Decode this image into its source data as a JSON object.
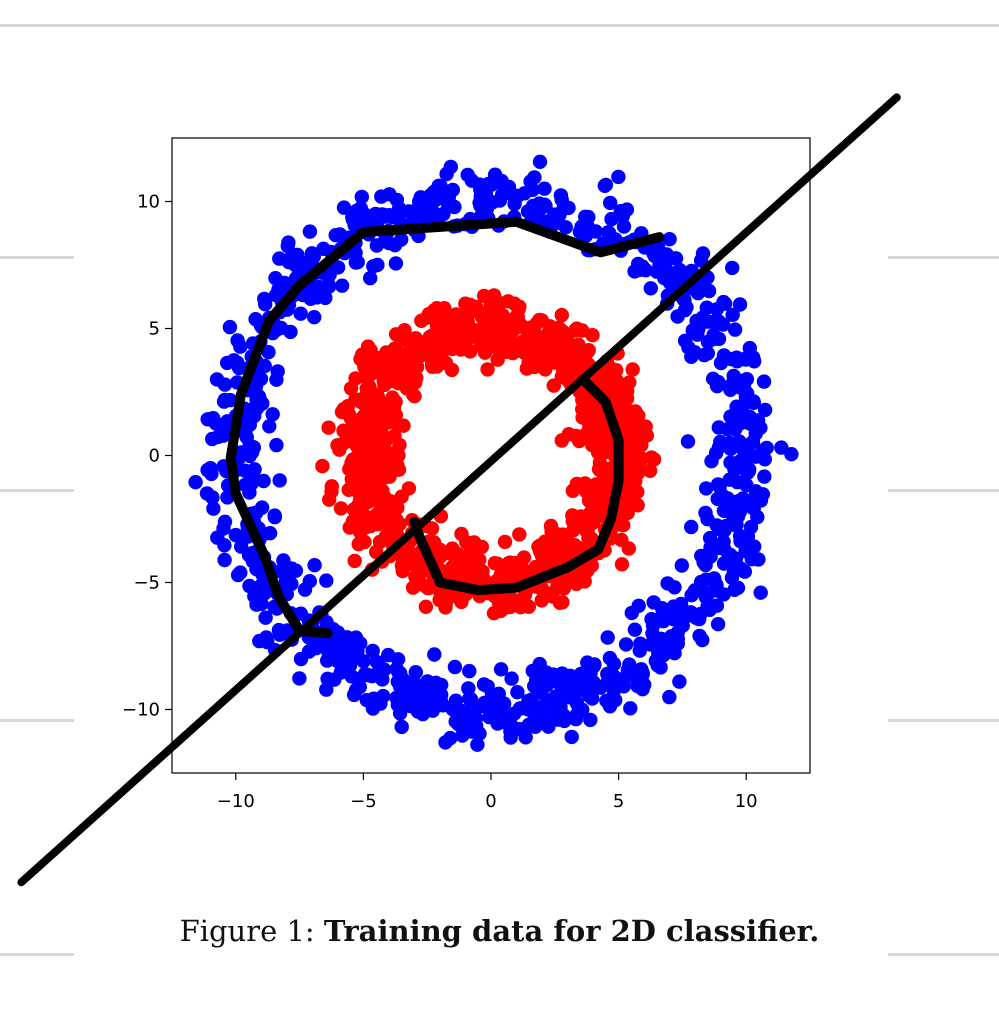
{
  "chart_data": {
    "type": "scatter",
    "title": "",
    "xlabel": "",
    "ylabel": "",
    "xlim": [
      -12.5,
      12.5
    ],
    "ylim": [
      -12.5,
      12.5
    ],
    "x_ticks": [
      -10,
      -5,
      0,
      5,
      10
    ],
    "y_ticks": [
      -10,
      -5,
      0,
      5,
      10
    ],
    "x_tick_labels": [
      "−10",
      "−5",
      "0",
      "5",
      "10"
    ],
    "y_tick_labels": [
      "−10",
      "−5",
      "0",
      "5",
      "10"
    ],
    "grid": false,
    "legend": "none",
    "series": [
      {
        "color": "#0000ff",
        "shape": "ring",
        "center": [
          0,
          0
        ],
        "radius_mean": 10,
        "radius_spread": 0.65,
        "count": 1000
      },
      {
        "color": "#ff0000",
        "shape": "ring",
        "center": [
          0,
          0
        ],
        "radius_mean": 5,
        "radius_spread": 0.65,
        "count": 1000
      }
    ],
    "annotations": [
      {
        "type": "hand-drawn-line",
        "color": "#000000",
        "points": [
          [
            -18.4,
            -16.8
          ],
          [
            15.9,
            14.1
          ]
        ]
      },
      {
        "type": "hand-drawn-zigzag",
        "color": "#000000",
        "points": [
          [
            6.6,
            8.6
          ],
          [
            4.3,
            8.0
          ],
          [
            1.0,
            9.2
          ],
          [
            -2.0,
            9.0
          ],
          [
            -5.0,
            8.8
          ],
          [
            -7.5,
            6.7
          ],
          [
            -8.7,
            5.3
          ],
          [
            -9.8,
            2.4
          ],
          [
            -10.2,
            -0.1
          ],
          [
            -10.0,
            -1.5
          ],
          [
            -8.9,
            -3.9
          ],
          [
            -8.3,
            -5.6
          ],
          [
            -7.5,
            -6.9
          ],
          [
            -6.4,
            -7.0
          ]
        ]
      },
      {
        "type": "hand-drawn-zigzag",
        "color": "#000000",
        "points": [
          [
            3.6,
            3.0
          ],
          [
            4.5,
            2.1
          ],
          [
            5.0,
            0.6
          ],
          [
            5.0,
            -1.0
          ],
          [
            4.7,
            -2.5
          ],
          [
            4.2,
            -3.7
          ],
          [
            3.0,
            -4.4
          ],
          [
            1.0,
            -5.2
          ],
          [
            -0.5,
            -5.3
          ],
          [
            -2.0,
            -5.0
          ],
          [
            -2.8,
            -3.2
          ],
          [
            -3.0,
            -2.6
          ]
        ]
      }
    ]
  },
  "caption": {
    "label": "Figure 1:",
    "text": "Training data for 2D classifier."
  }
}
